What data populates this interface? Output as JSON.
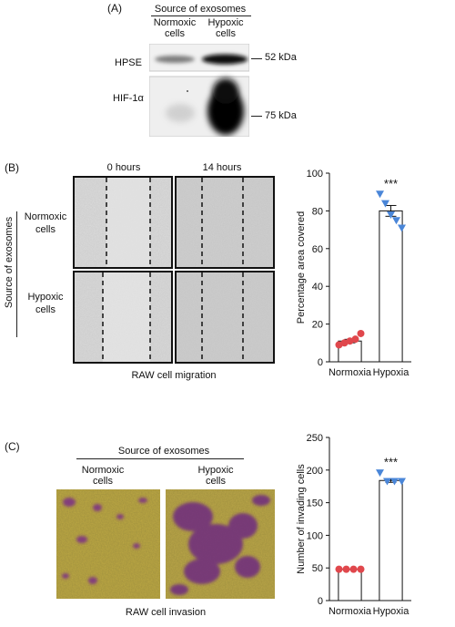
{
  "panel_a": {
    "label": "(A)",
    "header": "Source of exosomes",
    "col_normoxic": [
      "Normoxic",
      "cells"
    ],
    "col_hypoxic": [
      "Hypoxic",
      "cells"
    ],
    "row_hpse": "HPSE",
    "row_hif": "HIF-1α",
    "marker_52": "52 kDa",
    "marker_75": "75 kDa"
  },
  "panel_b": {
    "label": "(B)",
    "col_0h": "0 hours",
    "col_14h": "14 hours",
    "side_label": "Source of exosomes",
    "row_normoxic": [
      "Normoxic",
      "cells"
    ],
    "row_hypoxic": [
      "Hypoxic",
      "cells"
    ],
    "caption": "RAW cell migration"
  },
  "panel_c": {
    "label": "(C)",
    "header": "Source of exosomes",
    "col_normoxic": [
      "Normoxic",
      "cells"
    ],
    "col_hypoxic": [
      "Hypoxic",
      "cells"
    ],
    "caption": "RAW cell invasion"
  },
  "colors": {
    "normoxia": "#e0474c",
    "hypoxia": "#4a86d8",
    "stain": "#7b2d86",
    "membrane": "#b9a542"
  },
  "chart_data": [
    {
      "type": "bar",
      "categories": [
        "Normoxia",
        "Hypoxia"
      ],
      "values": [
        11,
        80
      ],
      "points": [
        [
          9,
          10,
          11,
          12,
          15
        ],
        [
          89,
          84,
          78,
          75,
          71
        ]
      ],
      "ylabel": "Percentage area covered",
      "ylim": [
        0,
        100
      ],
      "yticks": [
        0,
        20,
        40,
        60,
        80,
        100
      ],
      "annotation": "***"
    },
    {
      "type": "bar",
      "categories": [
        "Normoxia",
        "Hypoxia"
      ],
      "values": [
        48,
        184
      ],
      "points": [
        [
          48,
          48,
          48,
          48
        ],
        [
          196,
          183,
          183,
          183
        ]
      ],
      "ylabel": "Number of invading cells",
      "ylim": [
        0,
        250
      ],
      "yticks": [
        0,
        50,
        100,
        150,
        200,
        250
      ],
      "annotation": "***"
    }
  ]
}
